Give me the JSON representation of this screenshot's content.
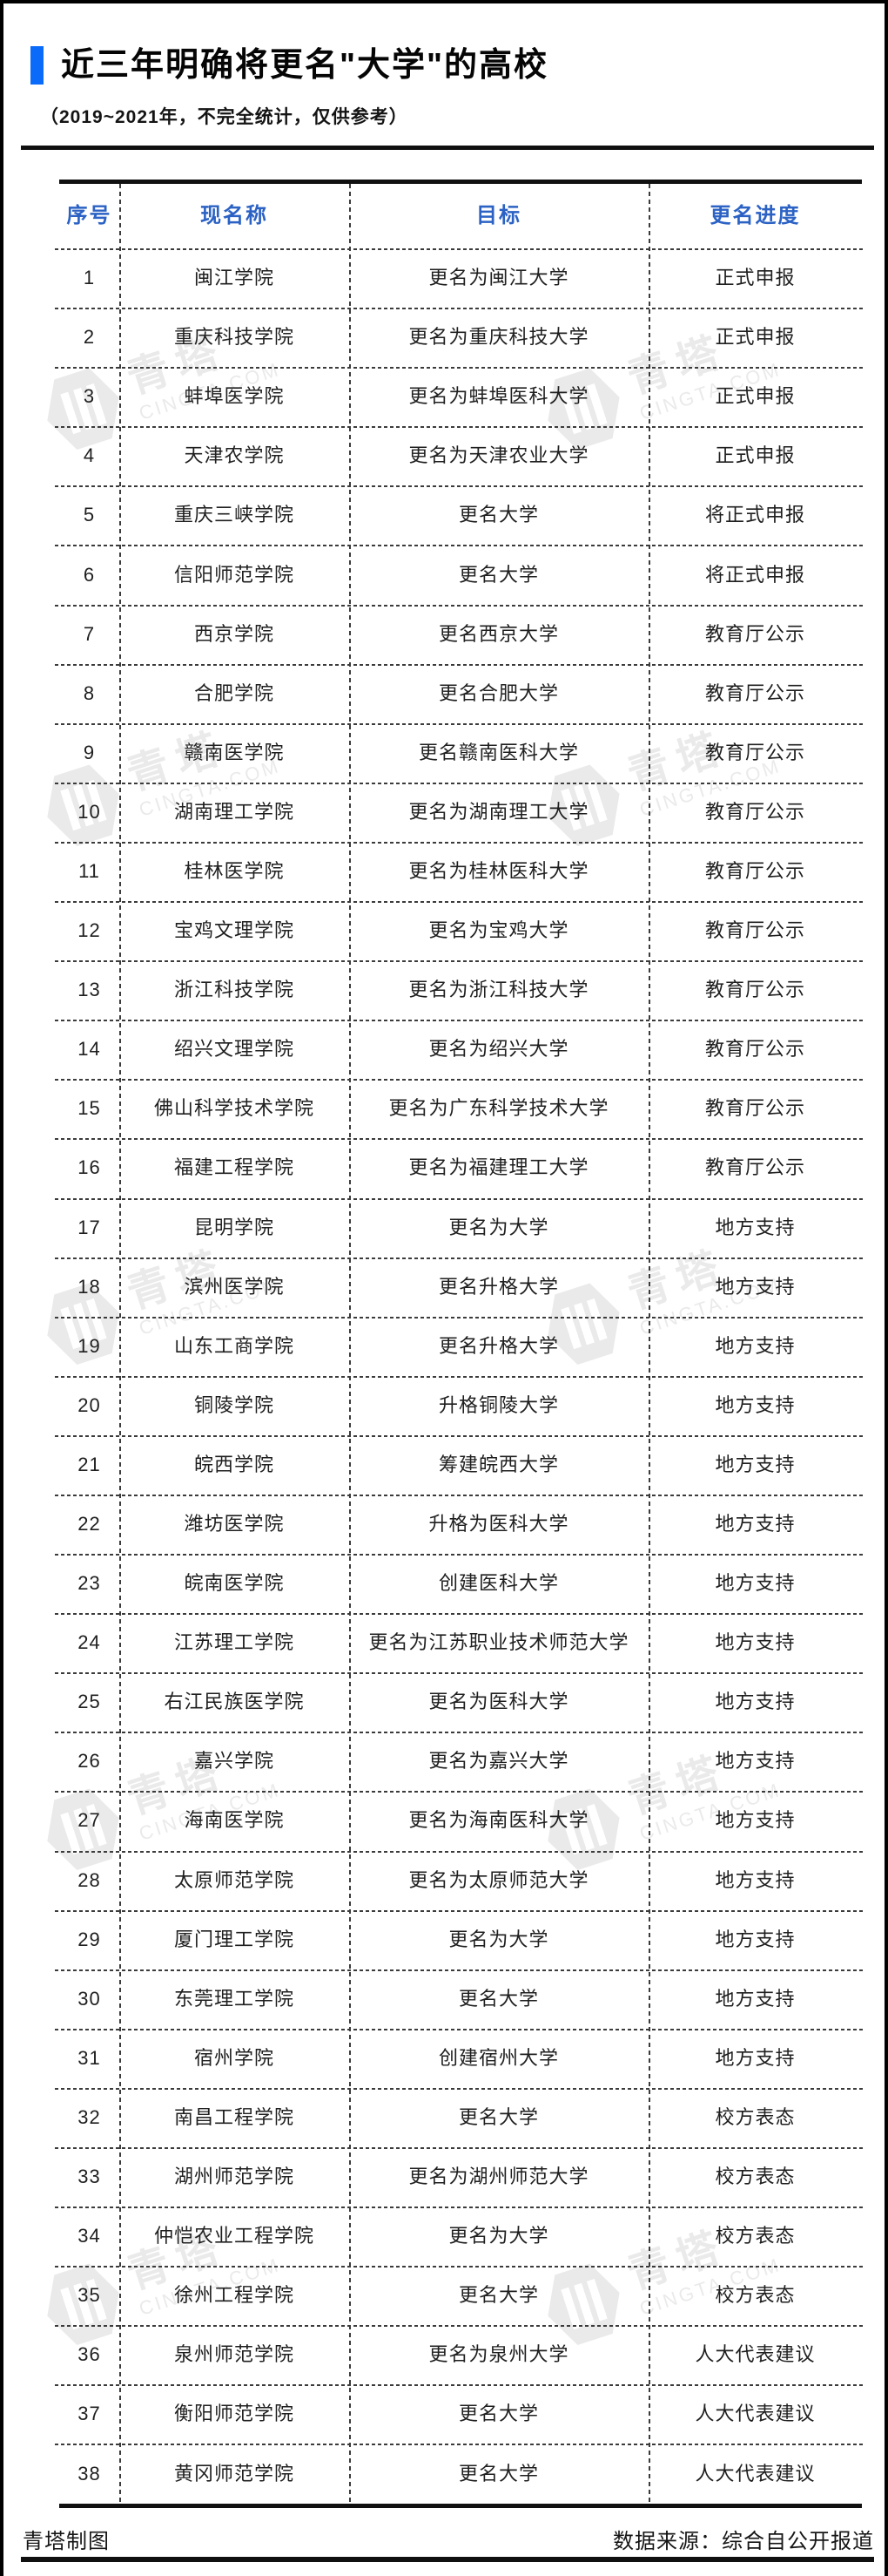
{
  "page": {
    "title": "近三年明确将更名\"大学\"的高校",
    "subtitle": "（2019~2021年，不完全统计，仅供参考）",
    "footer_left": "青塔制图",
    "footer_right": "数据来源：综合自公开报道",
    "accent_blue": "#0a6bfa",
    "header_blue": "#2b62c4",
    "watermark_cn": "青塔",
    "watermark_en": "CINGTA.COM"
  },
  "chart_data": {
    "type": "table",
    "title": "近三年明确将更名\"大学\"的高校",
    "subtitle": "（2019~2021年，不完全统计，仅供参考）",
    "columns": [
      "序号",
      "现名称",
      "目标",
      "更名进度"
    ],
    "rows": [
      [
        "1",
        "闽江学院",
        "更名为闽江大学",
        "正式申报"
      ],
      [
        "2",
        "重庆科技学院",
        "更名为重庆科技大学",
        "正式申报"
      ],
      [
        "3",
        "蚌埠医学院",
        "更名为蚌埠医科大学",
        "正式申报"
      ],
      [
        "4",
        "天津农学院",
        "更名为天津农业大学",
        "正式申报"
      ],
      [
        "5",
        "重庆三峡学院",
        "更名大学",
        "将正式申报"
      ],
      [
        "6",
        "信阳师范学院",
        "更名大学",
        "将正式申报"
      ],
      [
        "7",
        "西京学院",
        "更名西京大学",
        "教育厅公示"
      ],
      [
        "8",
        "合肥学院",
        "更名合肥大学",
        "教育厅公示"
      ],
      [
        "9",
        "赣南医学院",
        "更名赣南医科大学",
        "教育厅公示"
      ],
      [
        "10",
        "湖南理工学院",
        "更名为湖南理工大学",
        "教育厅公示"
      ],
      [
        "11",
        "桂林医学院",
        "更名为桂林医科大学",
        "教育厅公示"
      ],
      [
        "12",
        "宝鸡文理学院",
        "更名为宝鸡大学",
        "教育厅公示"
      ],
      [
        "13",
        "浙江科技学院",
        "更名为浙江科技大学",
        "教育厅公示"
      ],
      [
        "14",
        "绍兴文理学院",
        "更名为绍兴大学",
        "教育厅公示"
      ],
      [
        "15",
        "佛山科学技术学院",
        "更名为广东科学技术大学",
        "教育厅公示"
      ],
      [
        "16",
        "福建工程学院",
        "更名为福建理工大学",
        "教育厅公示"
      ],
      [
        "17",
        "昆明学院",
        "更名为大学",
        "地方支持"
      ],
      [
        "18",
        "滨州医学院",
        "更名升格大学",
        "地方支持"
      ],
      [
        "19",
        "山东工商学院",
        "更名升格大学",
        "地方支持"
      ],
      [
        "20",
        "铜陵学院",
        "升格铜陵大学",
        "地方支持"
      ],
      [
        "21",
        "皖西学院",
        "筹建皖西大学",
        "地方支持"
      ],
      [
        "22",
        "潍坊医学院",
        "升格为医科大学",
        "地方支持"
      ],
      [
        "23",
        "皖南医学院",
        "创建医科大学",
        "地方支持"
      ],
      [
        "24",
        "江苏理工学院",
        "更名为江苏职业技术师范大学",
        "地方支持"
      ],
      [
        "25",
        "右江民族医学院",
        "更名为医科大学",
        "地方支持"
      ],
      [
        "26",
        "嘉兴学院",
        "更名为嘉兴大学",
        "地方支持"
      ],
      [
        "27",
        "海南医学院",
        "更名为海南医科大学",
        "地方支持"
      ],
      [
        "28",
        "太原师范学院",
        "更名为太原师范大学",
        "地方支持"
      ],
      [
        "29",
        "厦门理工学院",
        "更名为大学",
        "地方支持"
      ],
      [
        "30",
        "东莞理工学院",
        "更名大学",
        "地方支持"
      ],
      [
        "31",
        "宿州学院",
        "创建宿州大学",
        "地方支持"
      ],
      [
        "32",
        "南昌工程学院",
        "更名大学",
        "校方表态"
      ],
      [
        "33",
        "湖州师范学院",
        "更名为湖州师范大学",
        "校方表态"
      ],
      [
        "34",
        "仲恺农业工程学院",
        "更名为大学",
        "校方表态"
      ],
      [
        "35",
        "徐州工程学院",
        "更名大学",
        "校方表态"
      ],
      [
        "36",
        "泉州师范学院",
        "更名为泉州大学",
        "人大代表建议"
      ],
      [
        "37",
        "衡阳师范学院",
        "更名大学",
        "人大代表建议"
      ],
      [
        "38",
        "黄冈师范学院",
        "更名大学",
        "人大代表建议"
      ]
    ]
  }
}
